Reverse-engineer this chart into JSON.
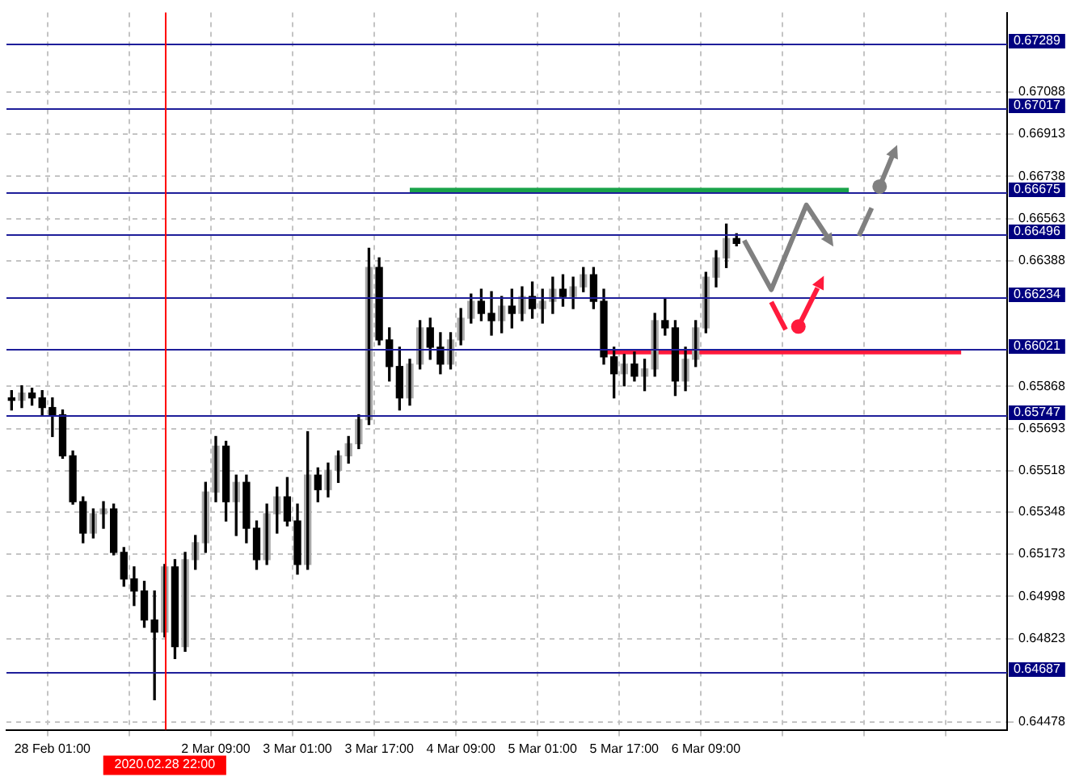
{
  "chart_data": {
    "type": "candlestick",
    "categories": [
      null,
      null,
      null,
      null,
      "28 Feb 01:00",
      null,
      null,
      null,
      null,
      null,
      null,
      null,
      null,
      null,
      null,
      "2020.02.28 22:00",
      null,
      null,
      null,
      null,
      "2 Mar 09:00",
      null,
      null,
      null,
      null,
      null,
      null,
      null,
      "3 Mar 01:00",
      null,
      null,
      null,
      null,
      null,
      null,
      null,
      "3 Mar 17:00",
      null,
      null,
      null,
      null,
      null,
      null,
      null,
      "4 Mar 09:00",
      null,
      null,
      null,
      null,
      null,
      null,
      null,
      "5 Mar 01:00",
      null,
      null,
      null,
      null,
      null,
      null,
      null,
      "5 Mar 17:00",
      null,
      null,
      null,
      null,
      null,
      null,
      null,
      "6 Mar 09:00",
      null,
      null,
      null,
      null,
      null,
      null,
      null,
      null,
      null,
      null,
      null,
      null,
      null,
      null,
      null,
      null,
      null,
      null,
      null,
      null,
      null,
      null,
      null,
      null,
      null,
      null,
      null,
      null,
      null
    ],
    "ohlc": [
      [
        0.6582,
        0.6585,
        0.6577,
        0.6581
      ],
      [
        0.6581,
        0.6587,
        0.6578,
        0.6584
      ],
      [
        0.6584,
        0.6586,
        0.6579,
        0.6582
      ],
      [
        0.6582,
        0.6585,
        0.6575,
        0.6578
      ],
      [
        0.6578,
        0.6582,
        0.6566,
        0.6575
      ],
      [
        0.6575,
        0.6577,
        0.6557,
        0.6558
      ],
      [
        0.6558,
        0.656,
        0.6538,
        0.6539
      ],
      [
        0.6539,
        0.6541,
        0.6522,
        0.6526
      ],
      [
        0.6526,
        0.6536,
        0.6524,
        0.6534
      ],
      [
        0.6534,
        0.6539,
        0.6528,
        0.6536
      ],
      [
        0.6536,
        0.6538,
        0.6517,
        0.6518
      ],
      [
        0.6518,
        0.652,
        0.6504,
        0.6507
      ],
      [
        0.6507,
        0.6512,
        0.6496,
        0.6502
      ],
      [
        0.6502,
        0.6506,
        0.6487,
        0.649
      ],
      [
        0.649,
        0.6502,
        0.6457,
        0.6485
      ],
      [
        0.6485,
        0.6513,
        0.6483,
        0.6512
      ],
      [
        0.6512,
        0.6515,
        0.6474,
        0.6479
      ],
      [
        0.6479,
        0.6518,
        0.6477,
        0.6515
      ],
      [
        0.6515,
        0.6525,
        0.6511,
        0.6522
      ],
      [
        0.6522,
        0.6547,
        0.6518,
        0.6543
      ],
      [
        0.6543,
        0.6566,
        0.6539,
        0.6562
      ],
      [
        0.6562,
        0.6564,
        0.6531,
        0.6539
      ],
      [
        0.6539,
        0.655,
        0.6525,
        0.6547
      ],
      [
        0.6547,
        0.655,
        0.6522,
        0.6528
      ],
      [
        0.6528,
        0.6531,
        0.6511,
        0.6515
      ],
      [
        0.6515,
        0.6538,
        0.6513,
        0.6534
      ],
      [
        0.6534,
        0.6545,
        0.6526,
        0.6541
      ],
      [
        0.6541,
        0.6549,
        0.6529,
        0.6531
      ],
      [
        0.6531,
        0.6538,
        0.6509,
        0.6513
      ],
      [
        0.6513,
        0.6568,
        0.6511,
        0.655
      ],
      [
        0.655,
        0.6553,
        0.6539,
        0.6544
      ],
      [
        0.6544,
        0.6555,
        0.6541,
        0.6552
      ],
      [
        0.6552,
        0.656,
        0.6547,
        0.6558
      ],
      [
        0.6558,
        0.6566,
        0.6555,
        0.6563
      ],
      [
        0.6563,
        0.6575,
        0.6561,
        0.6573
      ],
      [
        0.6573,
        0.6644,
        0.6571,
        0.6636
      ],
      [
        0.6636,
        0.664,
        0.6604,
        0.6606
      ],
      [
        0.6606,
        0.6611,
        0.6589,
        0.6595
      ],
      [
        0.6595,
        0.6603,
        0.6577,
        0.6582
      ],
      [
        0.6582,
        0.6598,
        0.6579,
        0.6596
      ],
      [
        0.6596,
        0.6614,
        0.6594,
        0.6611
      ],
      [
        0.6611,
        0.6615,
        0.6598,
        0.6603
      ],
      [
        0.6603,
        0.6609,
        0.6592,
        0.6596
      ],
      [
        0.6596,
        0.6609,
        0.6594,
        0.6606
      ],
      [
        0.6606,
        0.6619,
        0.6604,
        0.6615
      ],
      [
        0.6615,
        0.6625,
        0.6613,
        0.6622
      ],
      [
        0.6622,
        0.6627,
        0.6614,
        0.6617
      ],
      [
        0.6617,
        0.6626,
        0.6608,
        0.6614
      ],
      [
        0.6614,
        0.6624,
        0.6609,
        0.662
      ],
      [
        0.662,
        0.6627,
        0.6611,
        0.6617
      ],
      [
        0.6617,
        0.6628,
        0.6614,
        0.6624
      ],
      [
        0.6624,
        0.663,
        0.6615,
        0.6619
      ],
      [
        0.6619,
        0.6627,
        0.6613,
        0.6622
      ],
      [
        0.6622,
        0.6632,
        0.6617,
        0.6627
      ],
      [
        0.6627,
        0.6633,
        0.662,
        0.6624
      ],
      [
        0.6624,
        0.6632,
        0.6619,
        0.6628
      ],
      [
        0.6628,
        0.6636,
        0.6626,
        0.6633
      ],
      [
        0.6633,
        0.6636,
        0.6619,
        0.6622
      ],
      [
        0.6622,
        0.6627,
        0.6596,
        0.6599
      ],
      [
        0.6599,
        0.6603,
        0.6582,
        0.6592
      ],
      [
        0.6592,
        0.66,
        0.6587,
        0.6596
      ],
      [
        0.6596,
        0.6601,
        0.6589,
        0.6591
      ],
      [
        0.6591,
        0.6598,
        0.6585,
        0.6594
      ],
      [
        0.6594,
        0.6617,
        0.6591,
        0.6614
      ],
      [
        0.6614,
        0.6623,
        0.6608,
        0.6611
      ],
      [
        0.6611,
        0.6614,
        0.6583,
        0.6589
      ],
      [
        0.6589,
        0.6603,
        0.6585,
        0.6598
      ],
      [
        0.6598,
        0.6614,
        0.6595,
        0.6611
      ],
      [
        0.6611,
        0.6634,
        0.6609,
        0.6632
      ],
      [
        0.6632,
        0.6643,
        0.6628,
        0.664
      ],
      [
        0.664,
        0.6654,
        0.6636,
        0.6648
      ],
      [
        0.6648,
        0.665,
        0.6645,
        0.6646
      ],
      null,
      null,
      null,
      null,
      null,
      null,
      null,
      null,
      null,
      null,
      null,
      null,
      null,
      null,
      null,
      null,
      null,
      null,
      null,
      null,
      null,
      null,
      null,
      null,
      null,
      null
    ],
    "series": [
      {
        "type": "line",
        "color": "#1aa34a",
        "values": [
          null,
          null,
          null,
          null,
          null,
          null,
          null,
          null,
          null,
          null,
          null,
          null,
          null,
          null,
          null,
          null,
          null,
          null,
          null,
          null,
          null,
          null,
          null,
          null,
          null,
          null,
          null,
          null,
          null,
          null,
          null,
          null,
          null,
          null,
          null,
          null,
          null,
          null,
          null,
          0.6668,
          0.6668,
          0.6668,
          0.6668,
          0.6668,
          0.6668,
          0.6668,
          0.6668,
          0.6668,
          0.6668,
          0.6668,
          0.6668,
          0.6668,
          0.6668,
          0.6668,
          0.6668,
          0.6668,
          0.6668,
          0.6668,
          0.6668,
          0.6668,
          0.6668,
          0.6668,
          0.6668,
          0.6668,
          0.6668,
          0.6668,
          0.6668,
          0.6668,
          0.6668,
          0.6668,
          0.6668,
          0.6668,
          0.6668,
          0.6668,
          0.6668,
          0.6668,
          0.6668,
          0.6668,
          0.6668,
          0.6668,
          0.6668,
          0.6668,
          0.6668,
          null,
          null,
          null,
          null,
          null,
          null,
          null,
          null,
          null,
          null,
          null,
          null,
          null,
          null,
          null
        ]
      },
      {
        "type": "line",
        "color": "#ff1a3c",
        "values": [
          null,
          null,
          null,
          null,
          null,
          null,
          null,
          null,
          null,
          null,
          null,
          null,
          null,
          null,
          null,
          null,
          null,
          null,
          null,
          null,
          null,
          null,
          null,
          null,
          null,
          null,
          null,
          null,
          null,
          null,
          null,
          null,
          null,
          null,
          null,
          null,
          null,
          null,
          null,
          null,
          null,
          null,
          null,
          null,
          null,
          null,
          null,
          null,
          null,
          null,
          null,
          null,
          null,
          null,
          null,
          null,
          null,
          null,
          0.6601,
          0.6601,
          0.6601,
          0.6601,
          0.6601,
          0.6601,
          0.6601,
          0.6601,
          0.6601,
          0.6601,
          0.6601,
          0.6601,
          0.6601,
          0.6601,
          0.6601,
          0.6601,
          0.6601,
          0.6601,
          0.6601,
          0.6601,
          0.6601,
          0.6601,
          0.6601,
          0.6601,
          0.6601,
          0.6601,
          0.6601,
          0.6601,
          0.6601,
          0.6601,
          0.6601,
          0.6601,
          0.6601,
          0.6601,
          0.6601,
          0.6601,
          null,
          null,
          null,
          null
        ]
      }
    ],
    "ylim": [
      0.64445,
      0.67416
    ],
    "yticks": [
      0.64478,
      0.64823,
      0.64998,
      0.65173,
      0.65348,
      0.65518,
      0.65693,
      0.65868,
      0.66388,
      0.66563,
      0.66738,
      0.66913,
      0.67088
    ],
    "ref_lines": [
      {
        "axis": "y",
        "value": 0.67289,
        "label": "0.67289",
        "color": "#1e1e9a"
      },
      {
        "axis": "y",
        "value": 0.67017,
        "label": "0.67017",
        "color": "#1e1e9a"
      },
      {
        "axis": "y",
        "value": 0.66675,
        "label": "0.66675",
        "color": "#1e1e9a"
      },
      {
        "axis": "y",
        "value": 0.66496,
        "label": "0.66496",
        "color": "#1e1e9a"
      },
      {
        "axis": "y",
        "value": 0.66234,
        "label": "0.66234",
        "color": "#1e1e9a"
      },
      {
        "axis": "y",
        "value": 0.66021,
        "label": "0.66021",
        "color": "#1e1e9a"
      },
      {
        "axis": "y",
        "value": 0.65747,
        "label": "0.65747",
        "color": "#1e1e9a"
      },
      {
        "axis": "y",
        "value": 0.64687,
        "label": "0.64687",
        "color": "#1e1e9a"
      },
      {
        "axis": "x",
        "value": "2020.02.28 22:00",
        "color": "#ff0000"
      }
    ],
    "grid": true
  }
}
